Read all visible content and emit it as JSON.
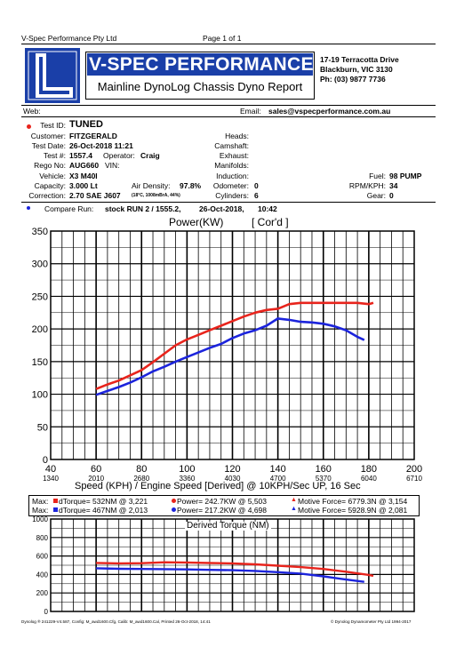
{
  "page": {
    "company": "V-Spec Performance Pty Ltd",
    "page_label": "Page 1 of 1"
  },
  "header": {
    "brand": "V-SPEC PERFORMANCE",
    "subtitle": "Mainline DynoLog Chassis Dyno Report",
    "address1": "17-19 Terracotta Drive",
    "address2": "Blackburn, VIC 3130",
    "phone": "Ph: (03) 9877 7736",
    "web_label": "Web:",
    "email_label": "Email:",
    "email": "sales@vspecperformance.com.au"
  },
  "info": {
    "test_id_label": "Test ID:",
    "test_id": "TUNED",
    "customer_label": "Customer:",
    "customer": "FITZGERALD",
    "test_date_label": "Test Date:",
    "test_date": "26-Oct-2018 11:21",
    "test_num_label": "Test #:",
    "test_num": "1557.4",
    "operator_label": "Operator:",
    "operator": "Craig",
    "rego_label": "Rego No:",
    "rego": "AUG660",
    "vin_label": "VIN:",
    "vehicle_label": "Vehicle:",
    "vehicle": "X3 M40I",
    "capacity_label": "Capacity:",
    "capacity": "3.000 Lt",
    "air_density_label": "Air Density:",
    "air_density": "97.8%",
    "correction_label": "Correction:",
    "correction": "2.70 SAE J607",
    "conditions": "(18°C, 1008mBrA, 44%)",
    "heads_label": "Heads:",
    "camshaft_label": "Camshaft:",
    "exhaust_label": "Exhaust:",
    "manifolds_label": "Manifolds:",
    "induction_label": "Induction:",
    "odometer_label": "Odometer:",
    "odometer": "0",
    "cylinders_label": "Cylinders:",
    "cylinders": "6",
    "fuel_label": "Fuel:",
    "fuel": "98 PUMP",
    "rpm_kph_label": "RPM/KPH:",
    "rpm_kph": "34",
    "gear_label": "Gear:",
    "gear": "0"
  },
  "compare": {
    "label": "Compare Run:",
    "run": "stock RUN 2 / 1555.2,",
    "date": "26-Oct-2018,",
    "time": "10:42"
  },
  "power_chart": {
    "title": "Power(KW)",
    "mode": "[ Cor'd ]",
    "xlabel": "Speed (KPH) / Engine Speed [Derived] @ 10KPH/Sec UP, 16 Sec"
  },
  "maxima": {
    "max_label": "Max:",
    "red_torque": "dTorque= 532NM @ 3,221",
    "red_power": "Power= 242.7KW @ 5,503",
    "red_force": "Motive Force= 6779.3N @ 3,154",
    "blue_torque": "dTorque= 467NM @ 2,013",
    "blue_power": "Power= 217.2KW @ 4,698",
    "blue_force": "Motive Force= 5928.9N @ 2,081"
  },
  "torque_chart": {
    "title": "Derived Torque (NM)"
  },
  "footer": {
    "left": "Dynolog ® 241229-V4.587, Config: M_awd1600.Cfg, Calib: M_awd1600.Cal, Printed 26-Oct-2018, 14:41",
    "right": "© Dynolog Dynamometer Pty Ltd 1994-2017"
  },
  "colors": {
    "red": "#e8241c",
    "blue": "#1c24dc"
  },
  "chart_data": [
    {
      "type": "line",
      "title": "Power(KW)",
      "xlabel": "Speed (KPH) / Engine Speed [Derived] @ 10KPH/Sec UP, 16 Sec",
      "ylabel": "",
      "xlim": [
        40,
        200
      ],
      "ylim": [
        0,
        350
      ],
      "x_ticks": [
        40,
        60,
        80,
        100,
        120,
        140,
        160,
        180,
        200
      ],
      "x_ticks_rpm": [
        1340,
        2010,
        2680,
        3360,
        4030,
        4700,
        5370,
        6040,
        6710
      ],
      "y_ticks": [
        0,
        50,
        100,
        150,
        200,
        250,
        300,
        350
      ],
      "grid": true,
      "series": [
        {
          "color": "#e8241c",
          "x": [
            60,
            65,
            70,
            75,
            80,
            85,
            90,
            95,
            100,
            105,
            110,
            115,
            120,
            125,
            130,
            135,
            140,
            145,
            150,
            155,
            160,
            165,
            170,
            175,
            180,
            182
          ],
          "y": [
            108,
            115,
            121,
            129,
            137,
            149,
            162,
            175,
            184,
            191,
            198,
            205,
            212,
            219,
            225,
            229,
            231,
            238,
            240,
            240,
            240,
            240,
            240,
            240,
            238,
            240
          ]
        },
        {
          "color": "#1c24dc",
          "x": [
            60,
            65,
            70,
            75,
            80,
            85,
            90,
            95,
            100,
            105,
            110,
            115,
            120,
            125,
            130,
            135,
            140,
            145,
            150,
            155,
            160,
            165,
            170,
            175,
            178
          ],
          "y": [
            99,
            105,
            111,
            118,
            126,
            135,
            142,
            150,
            157,
            164,
            171,
            177,
            186,
            193,
            198,
            205,
            216,
            214,
            211,
            210,
            208,
            204,
            198,
            188,
            183
          ]
        }
      ]
    },
    {
      "type": "line",
      "title": "Derived Torque (NM)",
      "xlim": [
        40,
        200
      ],
      "ylim": [
        0,
        1000
      ],
      "y_ticks": [
        0,
        200,
        400,
        600,
        800,
        1000
      ],
      "grid": true,
      "series": [
        {
          "color": "#e8241c",
          "x": [
            60,
            70,
            80,
            90,
            100,
            110,
            120,
            130,
            140,
            150,
            160,
            170,
            180,
            182
          ],
          "y": [
            525,
            520,
            522,
            532,
            530,
            524,
            520,
            510,
            495,
            480,
            460,
            430,
            395,
            385
          ]
        },
        {
          "color": "#1c24dc",
          "x": [
            60,
            70,
            80,
            90,
            100,
            110,
            120,
            130,
            140,
            150,
            160,
            170,
            178
          ],
          "y": [
            467,
            462,
            460,
            458,
            455,
            450,
            446,
            438,
            425,
            410,
            380,
            345,
            320
          ]
        }
      ]
    }
  ]
}
